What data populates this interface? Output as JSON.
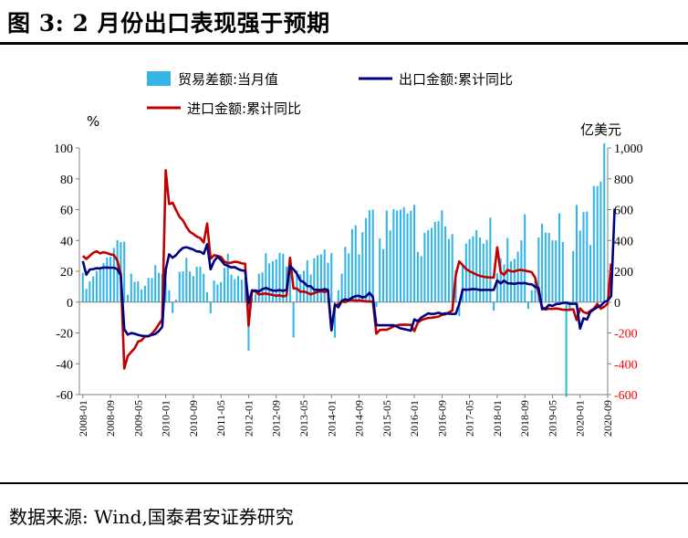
{
  "figure": {
    "title": "图 3:  2 月份出口表现强于预期",
    "source": "数据来源:  Wind,国泰君安证券研究"
  },
  "chart_data": {
    "type": "bar+line",
    "left_unit": "%",
    "right_unit": "亿美元",
    "y_left": {
      "min": -60,
      "max": 100,
      "ticks": [
        "-60",
        "-40",
        "-20",
        "0",
        "20",
        "40",
        "60",
        "80",
        "100"
      ]
    },
    "y_right": {
      "min": -600,
      "max": 1000,
      "ticks": [
        "-600",
        "-400",
        "-200",
        "0",
        "200",
        "400",
        "600",
        "800",
        "1,000"
      ]
    },
    "x_start": "2008-01",
    "x_end": "2021-02",
    "x_ticks": [
      "2008-01",
      "2008-09",
      "2009-05",
      "2010-01",
      "2010-09",
      "2011-05",
      "2012-01",
      "2012-09",
      "2013-05",
      "2014-01",
      "2014-09",
      "2015-05",
      "2016-01",
      "2016-09",
      "2017-05",
      "2018-01",
      "2018-09",
      "2019-05",
      "2020-01",
      "2020-09"
    ],
    "series": [
      {
        "name": "贸易差额:当月值",
        "kind": "bar",
        "axis": "right",
        "color": "#33b5e5",
        "values": [
          190,
          86,
          134,
          167,
          202,
          212,
          253,
          289,
          294,
          352,
          401,
          390,
          392,
          48,
          185,
          131,
          135,
          82,
          106,
          157,
          156,
          240,
          190,
          184,
          142,
          77,
          -71,
          17,
          196,
          200,
          287,
          199,
          169,
          230,
          230,
          184,
          65,
          -73,
          141,
          114,
          130,
          222,
          314,
          179,
          149,
          170,
          146,
          165,
          -315,
          24,
          53,
          184,
          193,
          317,
          251,
          266,
          277,
          320,
          314,
          231,
          292,
          -230,
          205,
          181,
          203,
          271,
          179,
          285,
          304,
          310,
          341,
          256,
          318,
          -231,
          77,
          185,
          359,
          316,
          473,
          498,
          310,
          454,
          545,
          596,
          600,
          -31,
          414,
          344,
          594,
          465,
          603,
          594,
          600,
          616,
          575,
          593,
          631,
          326,
          298,
          450,
          467,
          481,
          521,
          526,
          596,
          492,
          409,
          441,
          207,
          -91,
          238,
          380,
          409,
          427,
          466,
          419,
          380,
          403,
          548,
          -56,
          187,
          285,
          245,
          416,
          266,
          280,
          328,
          401,
          570,
          -44,
          76,
          138,
          420,
          509,
          451,
          449,
          401,
          401,
          577,
          390,
          -615,
          -48,
          331,
          630,
          464,
          584,
          588,
          370,
          754,
          753,
          782,
          1030
        ]
      },
      {
        "name": "出口金额:累计同比",
        "kind": "line",
        "axis": "left",
        "color": "#000080",
        "values": [
          26.6,
          17.8,
          21.1,
          21.4,
          22.0,
          21.9,
          22.4,
          22.4,
          22.3,
          22.3,
          21.3,
          17.2,
          -17.5,
          -21.1,
          -20.1,
          -20.5,
          -21.3,
          -21.8,
          -22.0,
          -22.0,
          -21.3,
          -20.7,
          -18.8,
          -16.0,
          21.0,
          31.0,
          28.8,
          30.5,
          33.2,
          35.2,
          35.6,
          34.9,
          34.1,
          32.9,
          32.7,
          31.3,
          37.6,
          21.3,
          26.5,
          29.5,
          27.3,
          24.4,
          23.5,
          22.5,
          22.7,
          21.4,
          20.6,
          20.3,
          -0.5,
          7.3,
          7.6,
          6.9,
          8.4,
          9.2,
          8.3,
          7.5,
          7.4,
          7.8,
          7.3,
          7.9,
          23.4,
          21.3,
          18.4,
          14.0,
          12.9,
          10.4,
          10.3,
          8.0,
          8.0,
          7.8,
          8.4,
          7.9,
          -18.1,
          -1.6,
          -3.4,
          0.9,
          1.8,
          1.3,
          3.0,
          3.9,
          4.1,
          3.0,
          3.6,
          6.1,
          3.2,
          -15.0,
          -15.0,
          -15.0,
          -15.0,
          -15.0,
          -15.0,
          -16.0,
          -17.0,
          -17.5,
          -18.0,
          -18.5,
          -11.2,
          -12.4,
          -10.0,
          -8.7,
          -7.3,
          -7.7,
          -7.5,
          -6.9,
          -7.7,
          -7.3,
          -7.5,
          -7.7,
          -7.6,
          -1.3,
          8.2,
          8.0,
          8.2,
          8.5,
          8.3,
          7.9,
          7.9,
          8.0,
          7.9,
          7.9,
          14.1,
          12.1,
          14.0,
          12.2,
          12.1,
          11.8,
          12.4,
          12.2,
          12.4,
          11.7,
          11.5,
          9.9,
          9.1,
          -4.6,
          -4.1,
          -1.8,
          -2.5,
          -1.3,
          -1.1,
          -0.6,
          -0.3,
          -1.1,
          -1.1,
          -1.1,
          -17.2,
          -10.5,
          -11.3,
          -6.3,
          -4.8,
          -3.3,
          -2.3,
          0.0,
          1.0,
          4.0,
          60.6
        ]
      },
      {
        "name": "进口金额:累计同比",
        "kind": "line",
        "axis": "left",
        "color": "#c00000",
        "values": [
          30.0,
          28.0,
          30.0,
          32.0,
          33.0,
          31.6,
          32.4,
          31.8,
          31.0,
          30.5,
          26.9,
          18.5,
          -43.1,
          -35.0,
          -32.4,
          -30.0,
          -25.6,
          -24.8,
          -22.3,
          -22.2,
          -20.4,
          -17.9,
          -14.4,
          -11.2,
          85.5,
          63.6,
          64.5,
          59.8,
          55.3,
          53.0,
          48.8,
          45.6,
          44.2,
          42.5,
          41.5,
          38.7,
          51.0,
          28.2,
          30.4,
          30.0,
          29.3,
          26.3,
          25.3,
          25.6,
          26.2,
          25.9,
          25.1,
          24.9,
          -15.3,
          7.7,
          6.8,
          5.0,
          5.3,
          5.6,
          5.0,
          4.7,
          4.1,
          4.4,
          3.7,
          4.3,
          28.8,
          8.9,
          8.8,
          6.7,
          6.9,
          6.1,
          5.0,
          5.9,
          6.6,
          7.1,
          6.6,
          7.3,
          -18.4,
          -2.5,
          -1.2,
          0.4,
          0.0,
          1.1,
          1.4,
          0.9,
          1.2,
          0.9,
          0.5,
          0.4,
          0.3,
          -20.5,
          -18.1,
          -17.9,
          -18.0,
          -16.9,
          -15.7,
          -15.0,
          -14.7,
          -14.6,
          -14.7,
          -14.8,
          -18.8,
          -13.3,
          -11.7,
          -10.9,
          -10.3,
          -10.1,
          -9.8,
          -9.4,
          -8.3,
          -7.9,
          -6.7,
          -5.5,
          17.6,
          26.4,
          24.0,
          21.5,
          20.0,
          19.0,
          17.8,
          17.0,
          16.5,
          16.1,
          16.0,
          15.9,
          35.5,
          19.4,
          17.6,
          20.9,
          20.0,
          19.9,
          20.7,
          20.9,
          20.4,
          20.0,
          19.4,
          15.8,
          5.5,
          -3.1,
          -4.8,
          -4.3,
          -4.4,
          -4.1,
          -4.5,
          -4.9,
          -5.0,
          -5.0,
          -4.6,
          -11.6,
          -4.1,
          -6.4,
          -7.3,
          -5.7,
          -4.2,
          -1.2,
          -4.3,
          -3.0,
          -1.0,
          25.0
        ]
      }
    ]
  }
}
